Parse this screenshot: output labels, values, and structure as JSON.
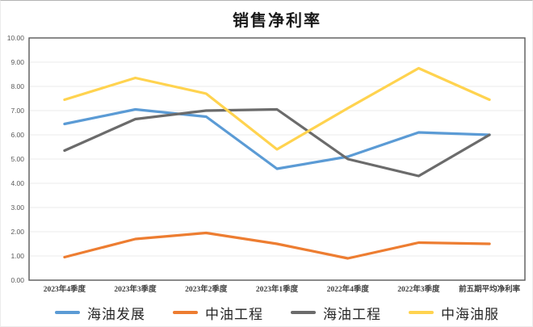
{
  "chart_data": {
    "type": "line",
    "title": "销售净利率",
    "categories": [
      "2023年4季度",
      "2023年3季度",
      "2023年2季度",
      "2023年1季度",
      "2022年4季度",
      "2022年3季度",
      "前五期平均净利率"
    ],
    "series": [
      {
        "name": "海油发展",
        "color": "#5B9BD5",
        "values": [
          6.45,
          7.05,
          6.75,
          4.6,
          5.1,
          6.1,
          6.0
        ]
      },
      {
        "name": "中油工程",
        "color": "#ED7D31",
        "values": [
          0.95,
          1.7,
          1.95,
          1.5,
          0.9,
          1.55,
          1.5
        ]
      },
      {
        "name": "海油工程",
        "color": "#6B6B6B",
        "values": [
          5.35,
          6.65,
          7.0,
          7.05,
          5.0,
          4.3,
          6.0
        ]
      },
      {
        "name": "中海油服",
        "color": "#FFD34F",
        "values": [
          7.45,
          8.35,
          7.7,
          5.4,
          7.1,
          8.75,
          7.45
        ]
      }
    ],
    "ylim": [
      0,
      10
    ],
    "ytick_step": 1,
    "ytick_format_decimals": 2,
    "grid": true,
    "legend_position": "bottom",
    "xlabel": "",
    "ylabel": ""
  },
  "colors": {
    "plot_frame": "#595959",
    "gridline": "#ebebeb",
    "background": "#ffffff"
  }
}
